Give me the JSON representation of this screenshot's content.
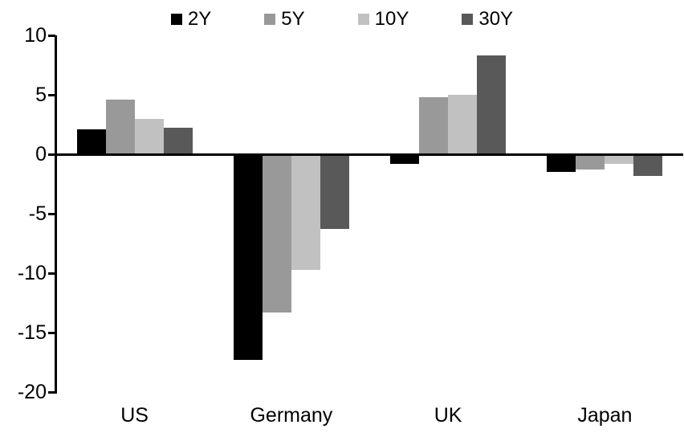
{
  "chart_data": {
    "type": "bar",
    "title": "",
    "subtitle": "",
    "xlabel": "",
    "ylabel": "",
    "categories": [
      "US",
      "Germany",
      "UK",
      "Japan"
    ],
    "series": [
      {
        "name": "2Y",
        "color": "#000000",
        "values": [
          2.1,
          -17.3,
          -0.8,
          -1.5
        ]
      },
      {
        "name": "5Y",
        "color": "#999999",
        "values": [
          4.6,
          -13.3,
          4.8,
          -1.3
        ]
      },
      {
        "name": "10Y",
        "color": "#c1c1c1",
        "values": [
          3.0,
          -9.7,
          5.0,
          -0.8
        ]
      },
      {
        "name": "30Y",
        "color": "#595959",
        "values": [
          2.2,
          -6.3,
          8.3,
          -1.8
        ]
      }
    ],
    "ylim": [
      -20,
      10
    ],
    "yticks": [
      10,
      5,
      0,
      -5,
      -10,
      -15,
      -20
    ],
    "legend_position": "top",
    "grid": false,
    "background_color": "#ffffff",
    "axis_color": "#000000"
  }
}
